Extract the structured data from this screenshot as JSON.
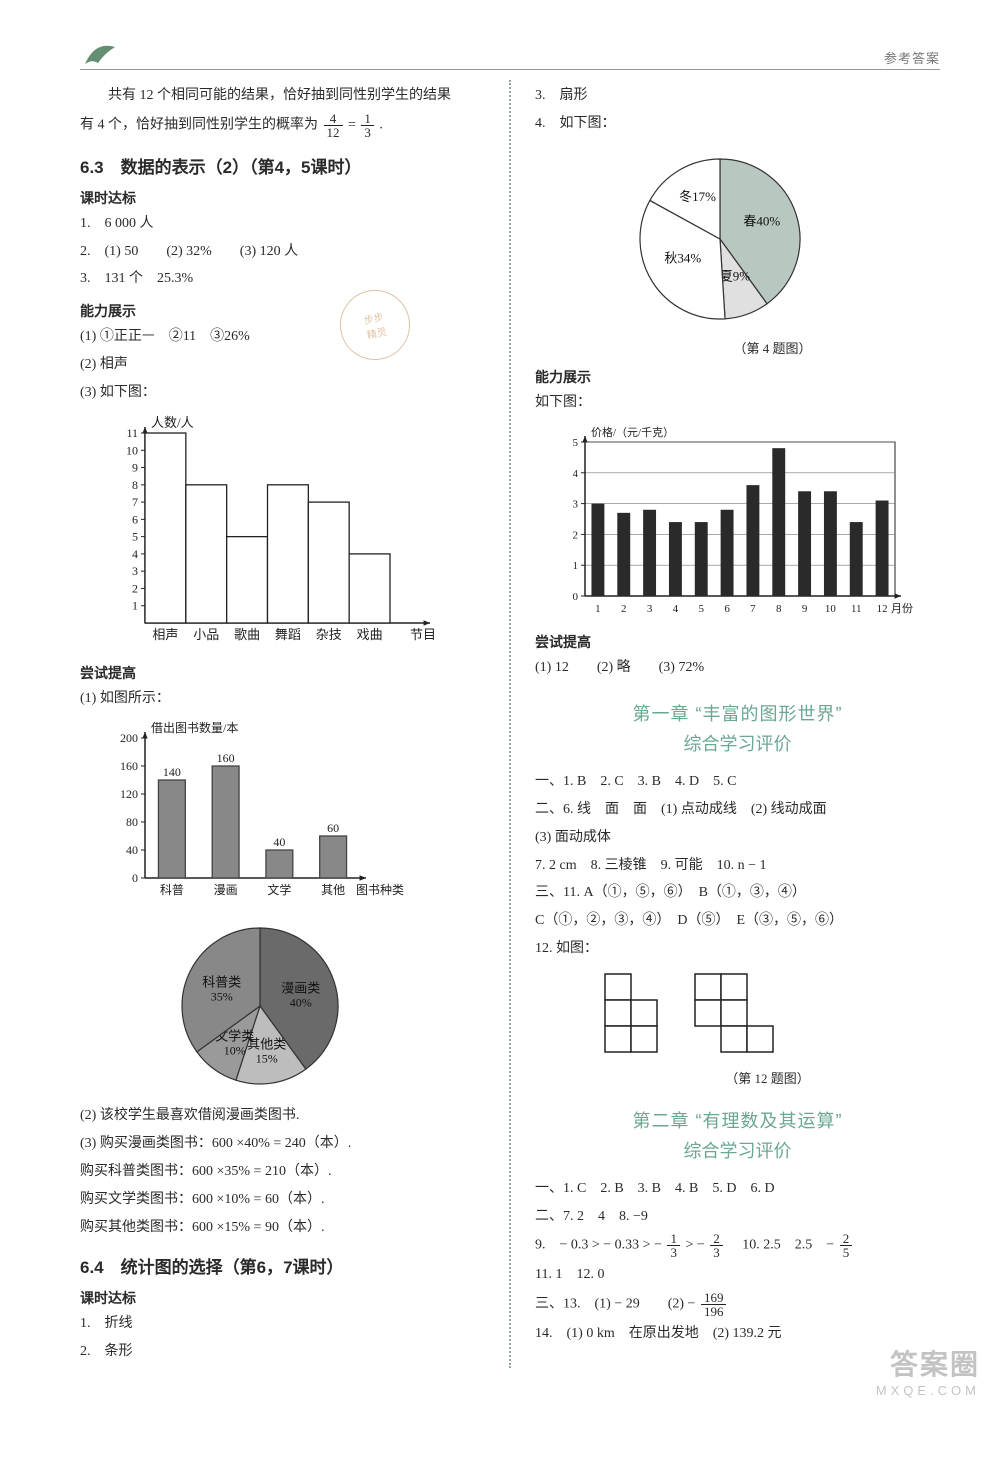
{
  "header": {
    "right": "参考答案"
  },
  "left": {
    "preamble_a": "　　共有 12 个相同可能的结果，恰好抽到同性别学生的结果",
    "preamble_b_pre": "有 4 个，恰好抽到同性别学生的概率为",
    "frac1": {
      "n": "4",
      "d": "12"
    },
    "eq": " = ",
    "frac2": {
      "n": "1",
      "d": "3"
    },
    "period": ".",
    "sec63": "6.3　数据的表示（2）（第4，5课时）",
    "keshi": "课时达标",
    "l1": "1.　6 000 人",
    "l2": "2.　(1) 50　　(2) 32%　　(3) 120 人",
    "l3": "3.　131 个　25.3%",
    "nengli": "能力展示",
    "l4": "(1) ①正正ᅳ　②11　③26%",
    "l5": "(2) 相声",
    "l6": "(3) 如下图：",
    "chart1": {
      "ylabel": "人数/人",
      "xlabel": "节目",
      "yticks": [
        1,
        2,
        3,
        4,
        5,
        6,
        7,
        8,
        9,
        10,
        11
      ],
      "ymax": 11,
      "cats": [
        "相声",
        "小品",
        "歌曲",
        "舞蹈",
        "杂技",
        "戏曲"
      ],
      "vals": [
        11,
        8,
        5,
        8,
        7,
        4
      ],
      "bar_fill": "#ffffff",
      "bar_stroke": "#222222",
      "axis_color": "#222222",
      "bg": "#ffffff"
    },
    "changshi": "尝试提高",
    "l7": "(1) 如图所示：",
    "chart2": {
      "ylabel": "借出图书数量/本",
      "xlabel": "图书种类",
      "yticks": [
        0,
        40,
        80,
        120,
        160,
        200
      ],
      "ymax": 200,
      "cats": [
        "科普",
        "漫画",
        "文学",
        "其他"
      ],
      "vals": [
        140,
        160,
        40,
        60
      ],
      "show_values": true,
      "bar_fill": "#888888",
      "bar_stroke": "#444444",
      "axis_color": "#222222"
    },
    "pie1": {
      "slices": [
        {
          "label": "漫画类",
          "pct": 40,
          "sub": "40%",
          "fill": "#6a6a6a"
        },
        {
          "label": "其他类",
          "pct": 15,
          "sub": "15%",
          "fill": "#bdbdbd"
        },
        {
          "label": "文学类",
          "pct": 10,
          "sub": "10%",
          "fill": "#9a9a9a"
        },
        {
          "label": "科普类",
          "pct": 35,
          "sub": "35%",
          "fill": "#888888"
        }
      ],
      "stroke": "#333333"
    },
    "l8": "(2) 该校学生最喜欢借阅漫画类图书.",
    "l9": "(3) 购买漫画类图书：600 ×40% = 240（本）.",
    "l10": "购买科普类图书：600 ×35% = 210（本）.",
    "l11": "购买文学类图书：600 ×10% = 60（本）.",
    "l12": "购买其他类图书：600 ×15% = 90（本）.",
    "sec64": "6.4　统计图的选择（第6，7课时）",
    "keshi2": "课时达标",
    "l13": "1.　折线",
    "l14": "2.　条形"
  },
  "right": {
    "r1": "3.　扇形",
    "r2": "4.　如下图：",
    "pie2": {
      "slices": [
        {
          "label": "春40%",
          "pct": 40,
          "fill": "#b8c8c0",
          "pattern": true
        },
        {
          "label": "夏9%",
          "pct": 9,
          "fill": "#e0e0e0"
        },
        {
          "label": "秋34%",
          "pct": 34,
          "fill": "#ffffff"
        },
        {
          "label": "冬17%",
          "pct": 17,
          "fill": "#ffffff"
        }
      ],
      "stroke": "#333333",
      "caption": "（第 4 题图）"
    },
    "nengli": "能力展示",
    "r3": "如下图：",
    "chart3": {
      "ylabel": "价格/（元/千克）",
      "xlabel": "月份",
      "yticks": [
        0,
        1,
        2,
        3,
        4,
        5
      ],
      "ymax": 5,
      "cats": [
        "1",
        "2",
        "3",
        "4",
        "5",
        "6",
        "7",
        "8",
        "9",
        "10",
        "11",
        "12"
      ],
      "vals": [
        3.0,
        2.7,
        2.8,
        2.4,
        2.4,
        2.8,
        3.6,
        4.8,
        3.4,
        3.4,
        2.4,
        3.1
      ],
      "bar_fill": "#2a2a2a",
      "axis_color": "#222222",
      "grid_color": "#777777",
      "border": true
    },
    "changshi": "尝试提高",
    "r4": "(1) 12　　(2) 略　　(3) 72%",
    "chap1a": "第一章 “丰富的图形世界”",
    "chap1b": "综合学习评价",
    "c1l1": "一、1. B　2. C　3. B　4. D　5. C",
    "c1l2": "二、6. 线　面　面　(1) 点动成线　(2) 线动成面",
    "c1l3": "(3) 面动成体",
    "c1l4": "7. 2 cm　8. 三棱锥　9. 可能　10. n − 1",
    "c1l5": "三、11. A（①，⑤，⑥）　B（①，③，④）",
    "c1l6": "C（①，②，③，④）　D（⑤）　E（③，⑤，⑥）",
    "c1l7": "12. 如图：",
    "fig_caption": "（第 12 题图）",
    "chap2a": "第二章 “有理数及其运算”",
    "chap2b": "综合学习评价",
    "c2l1": "一、1. C　2. B　3. B　4. B　5. D　6. D",
    "c2l2": "二、7. 2　4　8. −9",
    "c2l3_pre": "9.　− 0.3 > − 0.33 > − ",
    "c2f1": {
      "n": "1",
      "d": "3"
    },
    "c2l3_mid": " > − ",
    "c2f2": {
      "n": "2",
      "d": "3"
    },
    "c2l3_post": "　10. 2.5　2.5　− ",
    "c2f3": {
      "n": "2",
      "d": "5"
    },
    "c2l4": "11. 1　12. 0",
    "c2l5_pre": "三、13.　(1) − 29　　(2) − ",
    "c2f4": {
      "n": "169",
      "d": "196"
    },
    "c2l6": "14.　(1) 0 km　在原出发地　(2) 139.2 元"
  },
  "watermark": {
    "w1": "答案圈",
    "w2": "MXQE.COM"
  }
}
